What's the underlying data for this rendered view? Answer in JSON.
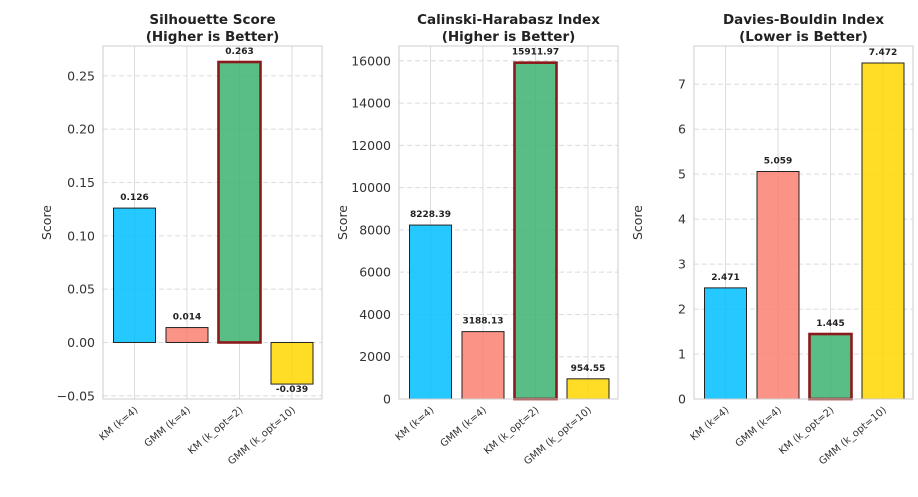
{
  "chart_data": [
    {
      "type": "bar",
      "title": "Silhouette Score\n(Higher is Better)",
      "ylabel": "Score",
      "categories": [
        "KM (k=4)",
        "GMM (k=4)",
        "KM (k_opt=2)",
        "GMM (k_opt=10)"
      ],
      "values": [
        0.126,
        0.014,
        0.263,
        -0.039
      ],
      "value_labels": [
        "0.126",
        "0.014",
        "0.263",
        "-0.039"
      ],
      "colors": [
        "#00bfff",
        "#fa8072",
        "#3cb371",
        "#ffd700"
      ],
      "highlight_index": 2,
      "ylim": [
        -0.053,
        0.278
      ],
      "yticks": [
        -0.05,
        0.0,
        0.05,
        0.1,
        0.15,
        0.2,
        0.25
      ],
      "ytick_labels": [
        "−0.05",
        "0.00",
        "0.05",
        "0.10",
        "0.15",
        "0.20",
        "0.25"
      ],
      "grid": true
    },
    {
      "type": "bar",
      "title": "Calinski-Harabasz Index\n(Higher is Better)",
      "ylabel": "Score",
      "categories": [
        "KM (k=4)",
        "GMM (k=4)",
        "KM (k_opt=2)",
        "GMM (k_opt=10)"
      ],
      "values": [
        8228.39,
        3188.13,
        15911.97,
        954.55
      ],
      "value_labels": [
        "8228.39",
        "3188.13",
        "15911.97",
        "954.55"
      ],
      "colors": [
        "#00bfff",
        "#fa8072",
        "#3cb371",
        "#ffd700"
      ],
      "highlight_index": 2,
      "ylim": [
        0,
        16700
      ],
      "yticks": [
        0,
        2000,
        4000,
        6000,
        8000,
        10000,
        12000,
        14000,
        16000
      ],
      "ytick_labels": [
        "0",
        "2000",
        "4000",
        "6000",
        "8000",
        "10000",
        "12000",
        "14000",
        "16000"
      ],
      "grid": true
    },
    {
      "type": "bar",
      "title": "Davies-Bouldin Index\n(Lower is Better)",
      "ylabel": "Score",
      "categories": [
        "KM (k=4)",
        "GMM (k=4)",
        "KM (k_opt=2)",
        "GMM (k_opt=10)"
      ],
      "values": [
        2.471,
        5.059,
        1.445,
        7.472
      ],
      "value_labels": [
        "2.471",
        "5.059",
        "1.445",
        "7.472"
      ],
      "colors": [
        "#00bfff",
        "#fa8072",
        "#3cb371",
        "#ffd700"
      ],
      "highlight_index": 2,
      "ylim": [
        0,
        7.85
      ],
      "yticks": [
        0,
        1,
        2,
        3,
        4,
        5,
        6,
        7
      ],
      "ytick_labels": [
        "0",
        "1",
        "2",
        "3",
        "4",
        "5",
        "6",
        "7"
      ],
      "grid": true
    }
  ]
}
